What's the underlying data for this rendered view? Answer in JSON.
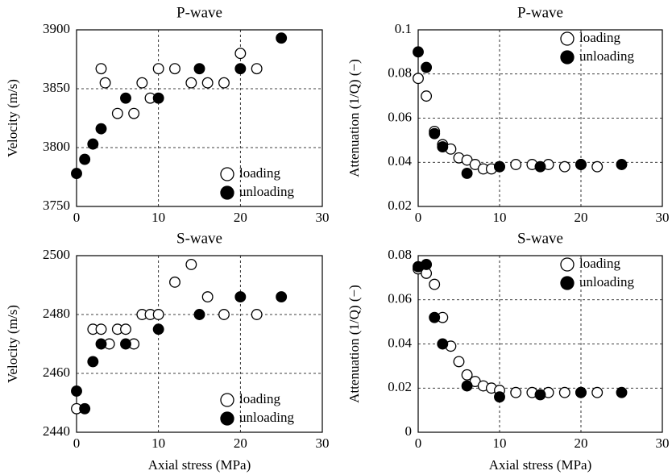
{
  "chart_data": [
    {
      "type": "scatter",
      "title": "P-wave",
      "ylabel": "Velocity (m/s)",
      "xlim": [
        0,
        30
      ],
      "xticks": [
        0,
        10,
        20,
        30
      ],
      "ylim": [
        3750,
        3900
      ],
      "yticks": [
        3750,
        3800,
        3850,
        3900
      ],
      "grid": true,
      "legend": "lower right",
      "series": [
        {
          "name": "loading",
          "color": "#000000",
          "marker_fill": "#ffffff",
          "x": [
            3,
            3.5,
            5,
            7,
            8,
            9,
            10,
            12,
            14,
            16,
            18,
            20,
            22
          ],
          "values": [
            3867,
            3855,
            3829,
            3829,
            3855,
            3842,
            3867,
            3867,
            3855,
            3855,
            3855,
            3880,
            3867
          ]
        },
        {
          "name": "unloading",
          "color": "#000000",
          "marker_fill": "#000000",
          "x": [
            0,
            1,
            2,
            3,
            6,
            10,
            15,
            20,
            25
          ],
          "values": [
            3778,
            3790,
            3803,
            3816,
            3842,
            3842,
            3867,
            3867,
            3893
          ]
        }
      ]
    },
    {
      "type": "scatter",
      "title": "P-wave",
      "ylabel": "Attenuation (1/Q) (−)",
      "xlim": [
        0,
        30
      ],
      "xticks": [
        0,
        10,
        20,
        30
      ],
      "ylim": [
        0.02,
        0.1
      ],
      "yticks": [
        0.02,
        0.04,
        0.06,
        0.08,
        0.1
      ],
      "grid": true,
      "legend": "upper right",
      "series": [
        {
          "name": "loading",
          "color": "#000000",
          "marker_fill": "#ffffff",
          "x": [
            0,
            1,
            2,
            3,
            4,
            5,
            6,
            7,
            8,
            9,
            10,
            12,
            14,
            16,
            18,
            20,
            22
          ],
          "values": [
            0.078,
            0.07,
            0.054,
            0.048,
            0.046,
            0.042,
            0.041,
            0.039,
            0.037,
            0.037,
            0.038,
            0.039,
            0.039,
            0.039,
            0.038,
            0.039,
            0.038
          ]
        },
        {
          "name": "unloading",
          "color": "#000000",
          "marker_fill": "#000000",
          "x": [
            0,
            1,
            2,
            3,
            6,
            10,
            15,
            20,
            25
          ],
          "values": [
            0.09,
            0.083,
            0.053,
            0.047,
            0.035,
            0.038,
            0.038,
            0.039,
            0.039
          ]
        }
      ]
    },
    {
      "type": "scatter",
      "title": "S-wave",
      "ylabel": "Velocity (m/s)",
      "xlabel": "Axial stress (MPa)",
      "xlim": [
        0,
        30
      ],
      "xticks": [
        0,
        10,
        20,
        30
      ],
      "ylim": [
        2440,
        2500
      ],
      "yticks": [
        2440,
        2460,
        2480,
        2500
      ],
      "grid": true,
      "legend": "lower right",
      "series": [
        {
          "name": "loading",
          "color": "#000000",
          "marker_fill": "#ffffff",
          "x": [
            0,
            2,
            3,
            4,
            5,
            6,
            7,
            8,
            9,
            10,
            12,
            14,
            16,
            18,
            22
          ],
          "values": [
            2448,
            2475,
            2475,
            2470,
            2475,
            2475,
            2470,
            2480,
            2480,
            2480,
            2491,
            2497,
            2486,
            2480,
            2480
          ]
        },
        {
          "name": "unloading",
          "color": "#000000",
          "marker_fill": "#000000",
          "x": [
            0,
            1,
            2,
            3,
            6,
            10,
            15,
            20,
            25
          ],
          "values": [
            2454,
            2448,
            2464,
            2470,
            2470,
            2475,
            2480,
            2486,
            2486
          ]
        }
      ]
    },
    {
      "type": "scatter",
      "title": "S-wave",
      "ylabel": "Attenuation (1/Q) (−)",
      "xlabel": "Axial stress (MPa)",
      "xlim": [
        0,
        30
      ],
      "xticks": [
        0,
        10,
        20,
        30
      ],
      "ylim": [
        0,
        0.08
      ],
      "yticks": [
        0,
        0.02,
        0.04,
        0.06,
        0.08
      ],
      "grid": true,
      "legend": "upper right",
      "series": [
        {
          "name": "loading",
          "color": "#000000",
          "marker_fill": "#ffffff",
          "x": [
            0,
            1,
            2,
            3,
            4,
            5,
            6,
            7,
            8,
            9,
            10,
            12,
            14,
            16,
            18,
            20,
            22
          ],
          "values": [
            0.074,
            0.072,
            0.067,
            0.052,
            0.039,
            0.032,
            0.026,
            0.023,
            0.021,
            0.02,
            0.019,
            0.018,
            0.018,
            0.018,
            0.018,
            0.018,
            0.018
          ]
        },
        {
          "name": "unloading",
          "color": "#000000",
          "marker_fill": "#000000",
          "x": [
            0,
            1,
            2,
            3,
            6,
            10,
            15,
            20,
            25
          ],
          "values": [
            0.075,
            0.076,
            0.052,
            0.04,
            0.021,
            0.016,
            0.017,
            0.018,
            0.018
          ]
        }
      ]
    }
  ]
}
